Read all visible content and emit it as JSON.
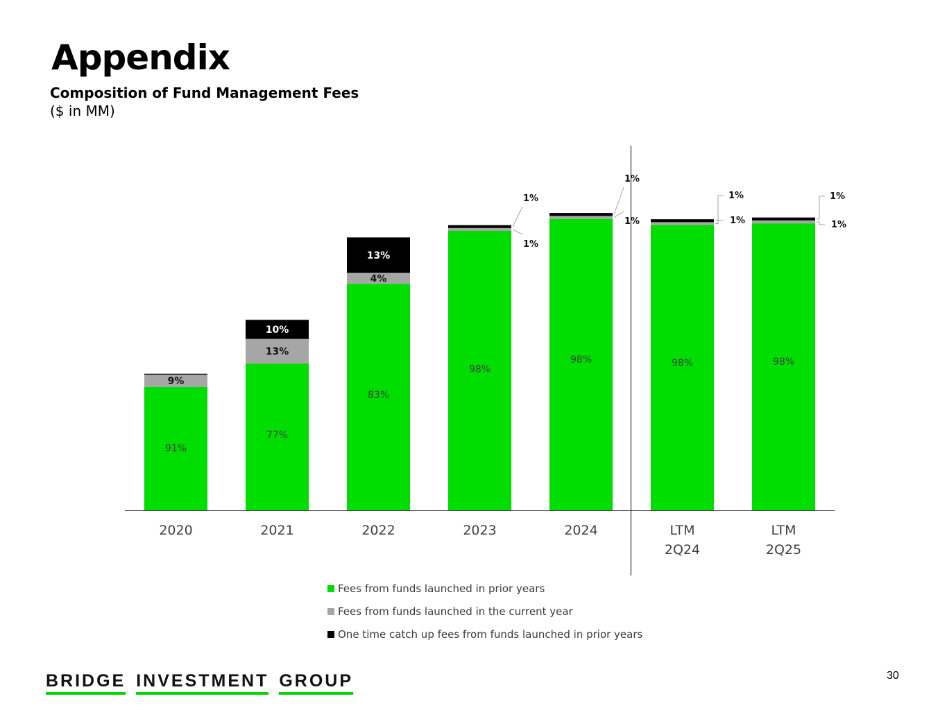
{
  "header": {
    "title": "Appendix",
    "subtitle": "Composition of Fund Management Fees",
    "unit": "($ in MM)"
  },
  "colors": {
    "prior_years": "#00dd00",
    "current_year": "#a6a6a6",
    "catch_up": "#000000",
    "axis": "#404040",
    "callout": "#a6a6a6"
  },
  "chart_data": {
    "type": "bar",
    "stacked": true,
    "categories": [
      "2020",
      "2021",
      "2022",
      "2023",
      "2024",
      "LTM 2Q24",
      "LTM 2Q25"
    ],
    "category_labels": [
      [
        "2020"
      ],
      [
        "2021"
      ],
      [
        "2022"
      ],
      [
        "2023"
      ],
      [
        "2024"
      ],
      [
        "LTM",
        "2Q24"
      ],
      [
        "LTM",
        "2Q25"
      ]
    ],
    "totals_relative": [
      0.474,
      0.666,
      0.957,
      1.0,
      1.0,
      1.0,
      1.0
    ],
    "total_heights_relative": [
      0.477,
      0.67,
      0.96,
      1.003,
      1.046,
      1.024,
      1.03
    ],
    "series": [
      {
        "name": "Fees from funds launched in prior years",
        "values": [
          91,
          77,
          83,
          98,
          98,
          98,
          98
        ],
        "labels": [
          "91%",
          "77%",
          "83%",
          "98%",
          "98%",
          "98%",
          "98%"
        ]
      },
      {
        "name": "Fees from funds launched in the current year",
        "values": [
          9,
          13,
          4,
          1,
          1,
          1,
          1
        ],
        "labels": [
          "9%",
          "13%",
          "4%",
          "1%",
          "1%",
          "1%",
          "1%"
        ]
      },
      {
        "name": "One time catch up fees from funds launched in prior years",
        "values": [
          0,
          10,
          13,
          1,
          1,
          1,
          1
        ],
        "labels": [
          "",
          "10%",
          "13%",
          "1%",
          "1%",
          "1%",
          "1%"
        ]
      }
    ],
    "divider_after_category": "2024",
    "legend_position": "bottom",
    "grid": false
  },
  "footer": {
    "logo_words": [
      "BRIDGE",
      "INVESTMENT",
      "GROUP"
    ],
    "page_number": "30"
  }
}
